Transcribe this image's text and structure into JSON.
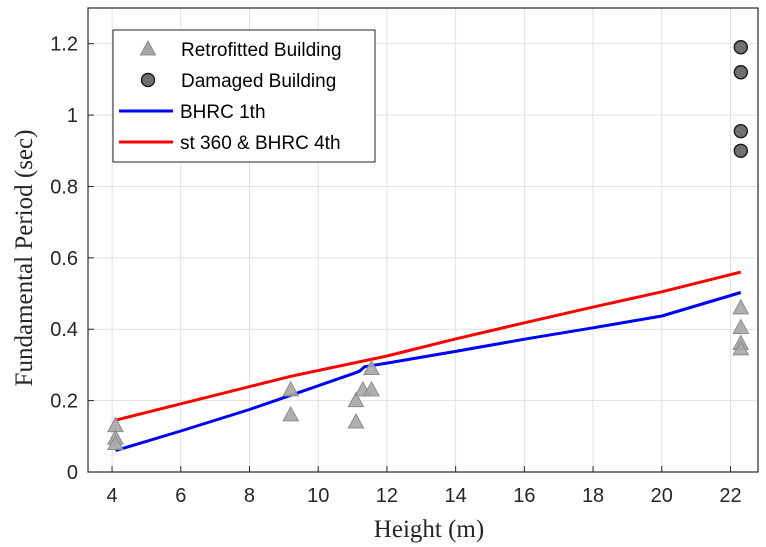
{
  "chart_data": {
    "type": "scatter",
    "xlabel": "Height (m)",
    "ylabel": "Fundamental Period (sec)",
    "xlim": [
      3.3,
      22.8
    ],
    "ylim": [
      0,
      1.3
    ],
    "xticks": [
      4,
      6,
      8,
      10,
      12,
      14,
      16,
      18,
      20,
      22
    ],
    "yticks": [
      0,
      0.2,
      0.4,
      0.6,
      0.8,
      1,
      1.2
    ],
    "grid": true,
    "legend_position": "top-left",
    "series": [
      {
        "name": "Retrofitted Building",
        "kind": "scatter",
        "marker": "triangle",
        "color": "#a6a6a6",
        "stroke": "#8c8c8c",
        "points": [
          [
            4.1,
            0.13
          ],
          [
            4.1,
            0.095
          ],
          [
            4.1,
            0.08
          ],
          [
            9.2,
            0.23
          ],
          [
            9.2,
            0.16
          ],
          [
            11.1,
            0.2
          ],
          [
            11.1,
            0.14
          ],
          [
            11.3,
            0.23
          ],
          [
            11.55,
            0.29
          ],
          [
            11.55,
            0.23
          ],
          [
            22.3,
            0.46
          ],
          [
            22.3,
            0.405
          ],
          [
            22.3,
            0.36
          ],
          [
            22.3,
            0.345
          ]
        ]
      },
      {
        "name": "Damaged Building",
        "kind": "scatter",
        "marker": "circle",
        "color": "#707070",
        "stroke": "#1a1a1a",
        "points": [
          [
            22.3,
            1.19
          ],
          [
            22.3,
            1.12
          ],
          [
            22.3,
            0.955
          ],
          [
            22.3,
            0.9
          ]
        ]
      },
      {
        "name": "BHRC 1th",
        "kind": "line",
        "color": "#0000ff",
        "points": [
          [
            4.1,
            0.06
          ],
          [
            6,
            0.115
          ],
          [
            8,
            0.175
          ],
          [
            9.2,
            0.215
          ],
          [
            11,
            0.275
          ],
          [
            11.2,
            0.282
          ],
          [
            11.35,
            0.295
          ],
          [
            12,
            0.305
          ],
          [
            14,
            0.338
          ],
          [
            16,
            0.372
          ],
          [
            18,
            0.404
          ],
          [
            20,
            0.437
          ],
          [
            22.3,
            0.503
          ]
        ]
      },
      {
        "name": "st 360 & BHRC 4th",
        "kind": "line",
        "color": "#ff0000",
        "points": [
          [
            4.1,
            0.145
          ],
          [
            9.2,
            0.268
          ],
          [
            12,
            0.325
          ],
          [
            14,
            0.373
          ],
          [
            16,
            0.418
          ],
          [
            18,
            0.462
          ],
          [
            20,
            0.505
          ],
          [
            22.3,
            0.56
          ]
        ]
      }
    ]
  }
}
